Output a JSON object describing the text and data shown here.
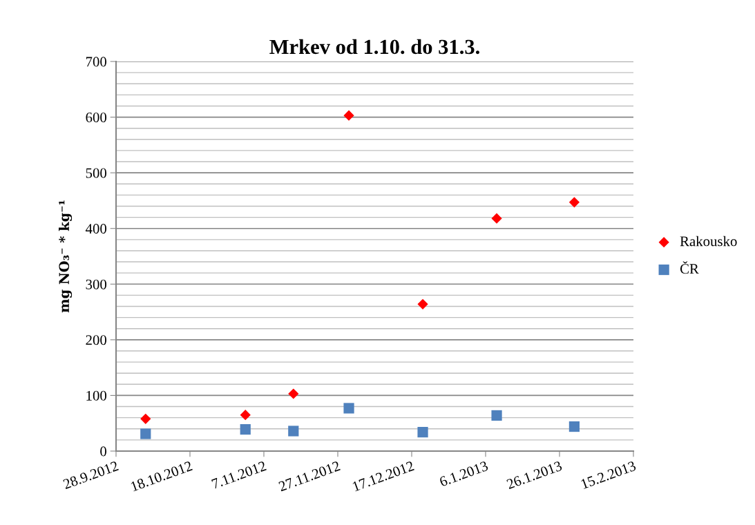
{
  "chart_data": {
    "type": "scatter",
    "title": "Mrkev od 1.10. do 31.3.",
    "ylabel": "mg NO₃⁻ * kg⁻¹",
    "x": [
      "2012-10-06",
      "2012-11-02",
      "2012-11-15",
      "2012-11-30",
      "2012-12-20",
      "2013-01-09",
      "2013-01-30"
    ],
    "series": [
      {
        "name": "Rakousko",
        "color": "#ff0000",
        "marker": "diamond",
        "values": [
          58,
          65,
          103,
          603,
          264,
          418,
          447
        ]
      },
      {
        "name": "ČR",
        "color": "#4f81bd",
        "marker": "square",
        "values": [
          31,
          39,
          36,
          77,
          34,
          64,
          44
        ]
      }
    ],
    "xlim": [
      "2012-09-28",
      "2013-02-15"
    ],
    "xticks": [
      {
        "value": "2012-09-28",
        "label": "28.9.2012"
      },
      {
        "value": "2012-10-18",
        "label": "18.10.2012"
      },
      {
        "value": "2012-11-07",
        "label": "7.11.2012"
      },
      {
        "value": "2012-11-27",
        "label": "27.11.2012"
      },
      {
        "value": "2012-12-17",
        "label": "17.12.2012"
      },
      {
        "value": "2013-01-06",
        "label": "6.1.2013"
      },
      {
        "value": "2013-01-26",
        "label": "26.1.2013"
      },
      {
        "value": "2013-02-15",
        "label": "15.2.2013"
      }
    ],
    "ylim": [
      0,
      700
    ],
    "yticks": [
      0,
      {
        "value": 20,
        "label": null
      },
      {
        "value": 40,
        "label": null
      },
      {
        "value": 60,
        "label": null
      },
      {
        "value": 80,
        "label": null
      },
      100,
      {
        "value": 120,
        "label": null
      },
      {
        "value": 140,
        "label": null
      },
      {
        "value": 160,
        "label": null
      },
      {
        "value": 180,
        "label": null
      },
      200,
      {
        "value": 220,
        "label": null
      },
      {
        "value": 240,
        "label": null
      },
      {
        "value": 260,
        "label": null
      },
      {
        "value": 280,
        "label": null
      },
      300,
      {
        "value": 320,
        "label": null
      },
      {
        "value": 340,
        "label": null
      },
      {
        "value": 360,
        "label": null
      },
      {
        "value": 380,
        "label": null
      },
      400,
      {
        "value": 420,
        "label": null
      },
      {
        "value": 440,
        "label": null
      },
      {
        "value": 460,
        "label": null
      },
      {
        "value": 480,
        "label": null
      },
      500,
      {
        "value": 520,
        "label": null
      },
      {
        "value": 540,
        "label": null
      },
      {
        "value": 560,
        "label": null
      },
      {
        "value": 580,
        "label": null
      },
      600,
      {
        "value": 620,
        "label": null
      },
      {
        "value": 640,
        "label": null
      },
      {
        "value": 660,
        "label": null
      },
      {
        "value": 680,
        "label": null
      },
      700
    ],
    "grid": "y",
    "legend": "right"
  }
}
